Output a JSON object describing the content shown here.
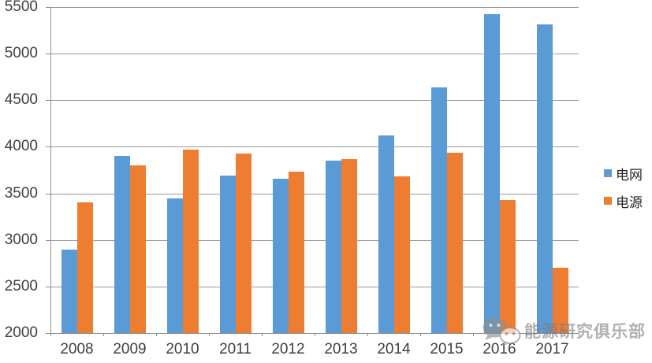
{
  "chart_data": {
    "type": "bar",
    "title": "",
    "xlabel": "",
    "ylabel": "",
    "categories": [
      "2008",
      "2009",
      "2010",
      "2011",
      "2012",
      "2013",
      "2014",
      "2015",
      "2016",
      "2017"
    ],
    "series": [
      {
        "id": "electric-grid",
        "name": "电网",
        "color": "#5B9BD5",
        "values": [
          2895,
          3898,
          3448,
          3687,
          3661,
          3851,
          4119,
          4640,
          5426,
          5315
        ]
      },
      {
        "id": "power-source",
        "name": "电源",
        "color": "#ED7D31",
        "values": [
          3404,
          3803,
          3969,
          3928,
          3732,
          3872,
          3686,
          3936,
          3429,
          2700
        ]
      }
    ],
    "ylim": [
      2000,
      5500
    ],
    "yticks": [
      2000,
      2500,
      3000,
      3500,
      4000,
      4500,
      5000,
      5500
    ],
    "grid": true,
    "legend_position": "right"
  },
  "watermark": {
    "text": "能源研究俱乐部",
    "icon": "wechat-icon"
  },
  "colors": {
    "background": "#ffffff",
    "grid_line": "#9a9a9a",
    "axis_line": "#8f8f8f",
    "tick_label": "#3f3f3f",
    "watermark_gray": "#7d7d7d"
  }
}
